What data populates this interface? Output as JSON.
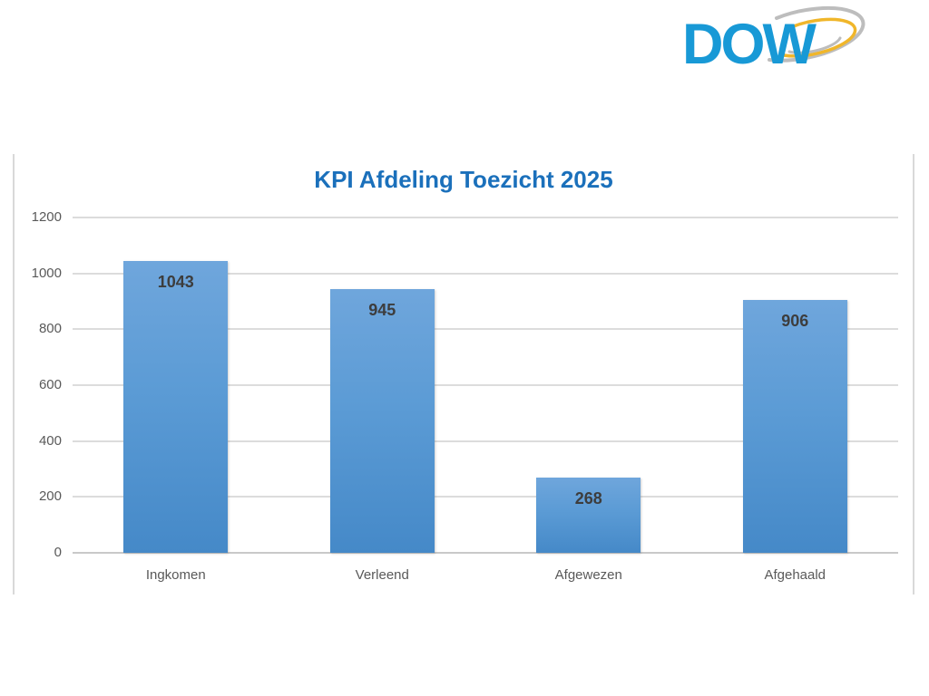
{
  "logo": {
    "text": "DOW"
  },
  "chart_data": {
    "type": "bar",
    "title": "KPI Afdeling Toezicht 2025",
    "categories": [
      "Ingkomen",
      "Verleend",
      "Afgewezen",
      "Afgehaald"
    ],
    "values": [
      1043,
      945,
      268,
      906
    ],
    "xlabel": "",
    "ylabel": "",
    "ylim": [
      0,
      1200
    ],
    "yticks": [
      0,
      200,
      400,
      600,
      800,
      1000,
      1200
    ],
    "grid": true,
    "legend": false,
    "colors": {
      "bar_top": "#6fa6dc",
      "bar_mid": "#5b9bd5",
      "bar_bottom": "#4589c8",
      "title": "#1b70bb",
      "axis_label": "#595959",
      "data_label": "#3d3d3d",
      "gridline": "#dcdcdc",
      "baseline": "#c9c9c9",
      "frame": "#d9d9d9",
      "logo_blue": "#1899d6",
      "logo_gray": "#bdbdbd",
      "logo_yellow": "#f0b62a"
    }
  }
}
